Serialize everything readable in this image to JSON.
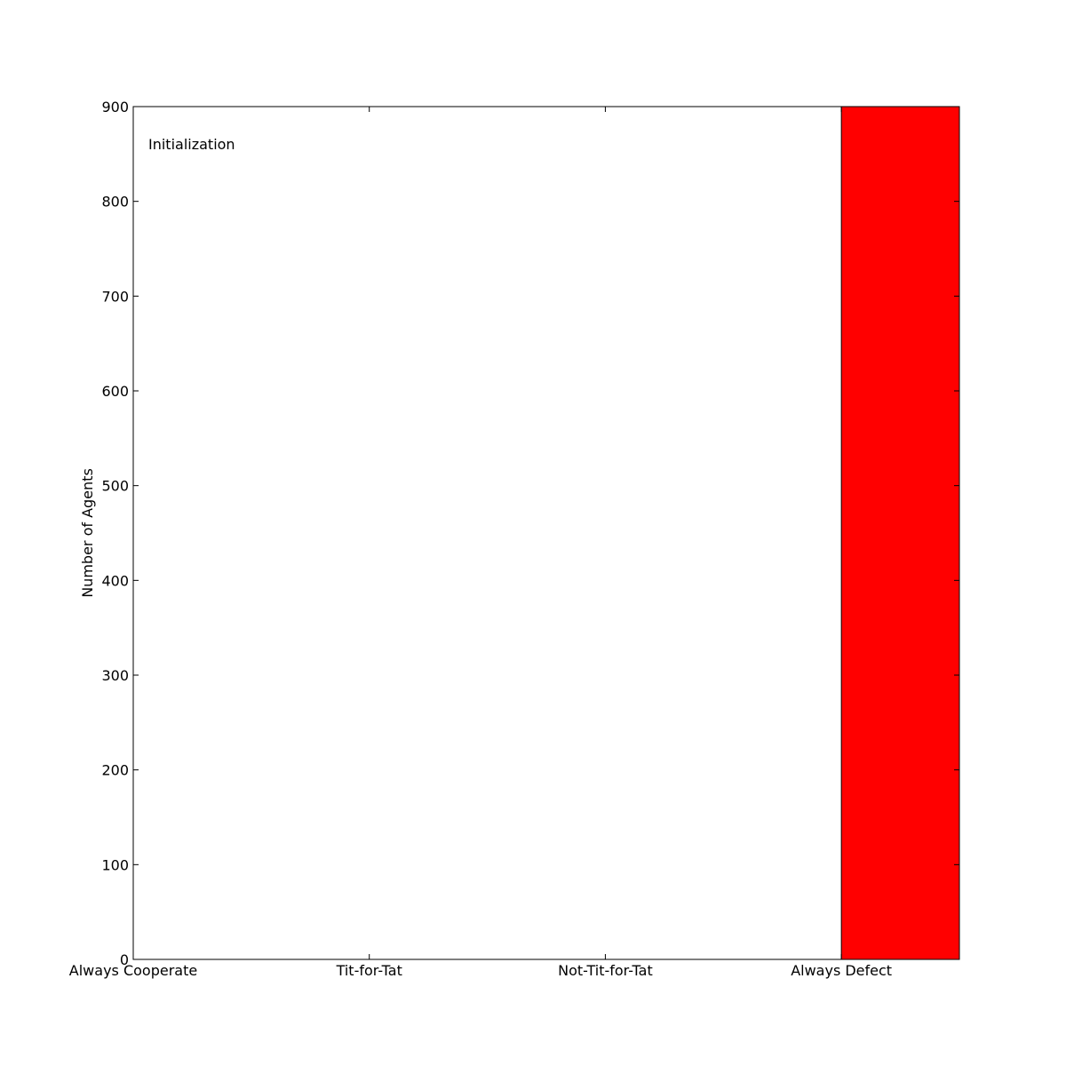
{
  "chart_data": {
    "type": "bar",
    "annotation": "Initialization",
    "ylabel": "Number of Agents",
    "xlabel": "",
    "categories": [
      "Always Cooperate",
      "Tit-for-Tat",
      "Not-Tit-for-Tat",
      "Always Defect"
    ],
    "values": [
      0,
      0,
      0,
      900
    ],
    "ylim": [
      0,
      900
    ],
    "yticks": [
      0,
      100,
      200,
      300,
      400,
      500,
      600,
      700,
      800,
      900
    ],
    "grid": false,
    "legend": "none",
    "colors": {
      "bar": "#ff0000",
      "edge": "#000000"
    }
  }
}
